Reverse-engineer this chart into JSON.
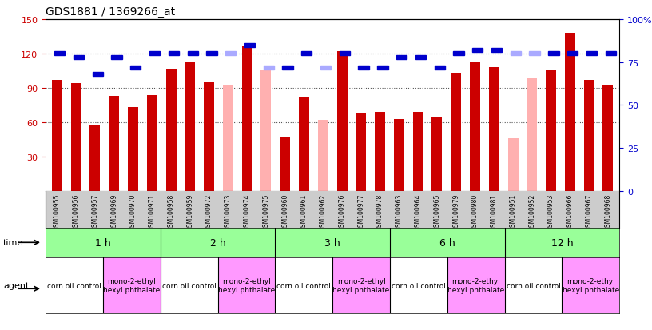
{
  "title": "GDS1881 / 1369266_at",
  "samples": [
    "GSM100955",
    "GSM100956",
    "GSM100957",
    "GSM100969",
    "GSM100970",
    "GSM100971",
    "GSM100958",
    "GSM100959",
    "GSM100972",
    "GSM100973",
    "GSM100974",
    "GSM100975",
    "GSM100960",
    "GSM100961",
    "GSM100962",
    "GSM100976",
    "GSM100977",
    "GSM100978",
    "GSM100963",
    "GSM100964",
    "GSM100965",
    "GSM100979",
    "GSM100980",
    "GSM100981",
    "GSM100951",
    "GSM100952",
    "GSM100953",
    "GSM100966",
    "GSM100967",
    "GSM100968"
  ],
  "count_values": [
    97,
    94,
    58,
    83,
    73,
    84,
    107,
    112,
    95,
    93,
    126,
    106,
    47,
    82,
    62,
    122,
    68,
    69,
    63,
    69,
    65,
    103,
    113,
    108,
    46,
    98,
    105,
    138,
    97,
    92
  ],
  "rank_values": [
    80,
    78,
    68,
    78,
    72,
    80,
    80,
    80,
    80,
    80,
    85,
    72,
    72,
    80,
    72,
    80,
    72,
    72,
    78,
    78,
    72,
    80,
    82,
    82,
    80,
    80,
    80,
    80,
    80,
    80
  ],
  "absent_flags": [
    false,
    false,
    false,
    false,
    false,
    false,
    false,
    false,
    false,
    true,
    false,
    true,
    false,
    false,
    true,
    false,
    false,
    false,
    false,
    false,
    false,
    false,
    false,
    false,
    true,
    true,
    false,
    false,
    false,
    false
  ],
  "time_groups": [
    {
      "label": "1 h",
      "start": 0,
      "end": 6
    },
    {
      "label": "2 h",
      "start": 6,
      "end": 12
    },
    {
      "label": "3 h",
      "start": 12,
      "end": 18
    },
    {
      "label": "6 h",
      "start": 18,
      "end": 24
    },
    {
      "label": "12 h",
      "start": 24,
      "end": 30
    }
  ],
  "agent_groups": [
    {
      "label": "corn oil control",
      "start": 0,
      "end": 3,
      "color": "#ffffff"
    },
    {
      "label": "mono-2-ethyl\nhexyl phthalate",
      "start": 3,
      "end": 6,
      "color": "#ff99ff"
    },
    {
      "label": "corn oil control",
      "start": 6,
      "end": 9,
      "color": "#ffffff"
    },
    {
      "label": "mono-2-ethyl\nhexyl phthalate",
      "start": 9,
      "end": 12,
      "color": "#ff99ff"
    },
    {
      "label": "corn oil control",
      "start": 12,
      "end": 15,
      "color": "#ffffff"
    },
    {
      "label": "mono-2-ethyl\nhexyl phthalate",
      "start": 15,
      "end": 18,
      "color": "#ff99ff"
    },
    {
      "label": "corn oil control",
      "start": 18,
      "end": 21,
      "color": "#ffffff"
    },
    {
      "label": "mono-2-ethyl\nhexyl phthalate",
      "start": 21,
      "end": 24,
      "color": "#ff99ff"
    },
    {
      "label": "corn oil control",
      "start": 24,
      "end": 27,
      "color": "#ffffff"
    },
    {
      "label": "mono-2-ethyl\nhexyl phthalate",
      "start": 27,
      "end": 30,
      "color": "#ff99ff"
    }
  ],
  "ylim_left": [
    0,
    150
  ],
  "ylim_right": [
    0,
    100
  ],
  "yticks_left": [
    30,
    60,
    90,
    120,
    150
  ],
  "yticks_right": [
    0,
    25,
    50,
    75,
    100
  ],
  "ytick_labels_right": [
    "0",
    "25",
    "50",
    "75",
    "100%"
  ],
  "bar_color": "#cc0000",
  "absent_bar_color": "#ffb0b0",
  "rank_color": "#0000cc",
  "rank_absent_color": "#aaaaff",
  "grid_color": "#555555",
  "bg_color": "#ffffff",
  "time_row_color": "#99ff99",
  "agent_row_color_1": "#ffffff",
  "agent_row_color_2": "#ff99ff",
  "tick_label_color_left": "#cc0000",
  "tick_label_color_right": "#0000cc",
  "header_bg": "#cccccc"
}
